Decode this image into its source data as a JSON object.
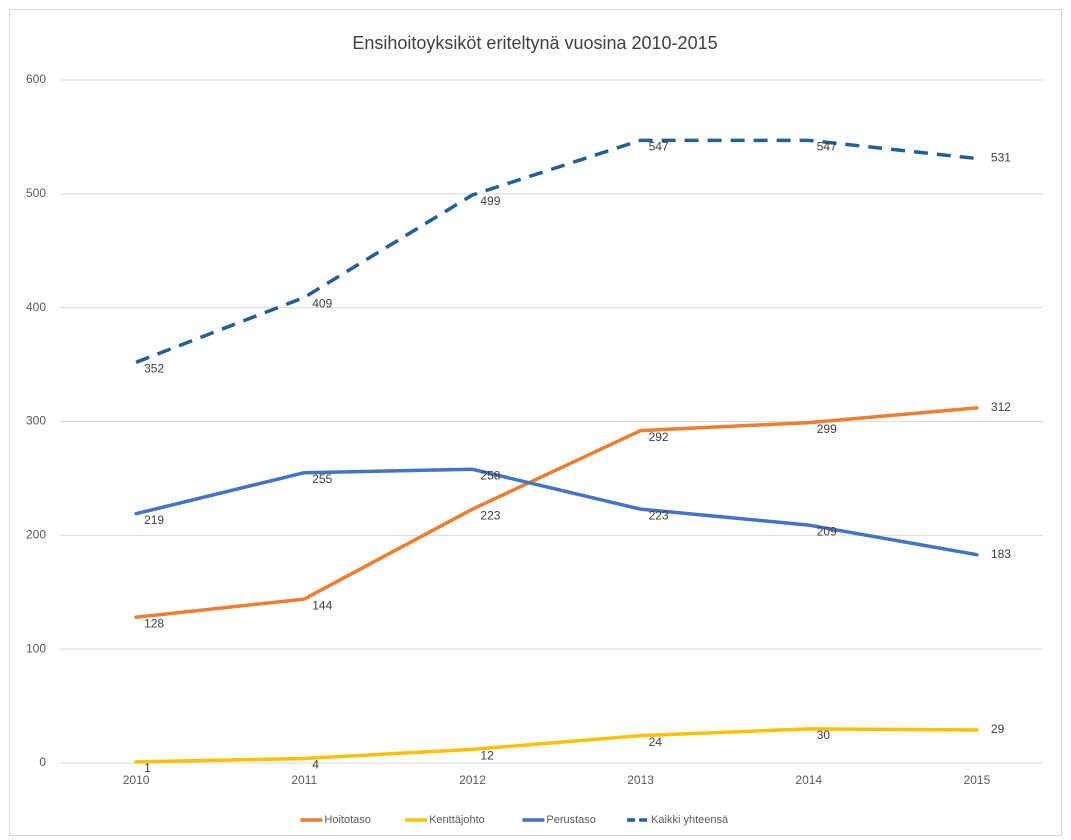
{
  "chart_data": {
    "type": "line",
    "title": "Ensihoitoyksiköt eriteltynä vuosina 2010-2015",
    "categories": [
      "2010",
      "2011",
      "2012",
      "2013",
      "2014",
      "2015"
    ],
    "series": [
      {
        "name": "Hoitotaso",
        "color": "#ed7d31",
        "values": [
          128,
          144,
          223,
          292,
          299,
          312
        ]
      },
      {
        "name": "Kenttäjohto",
        "color": "#ffc000",
        "values": [
          1,
          4,
          12,
          24,
          30,
          29
        ]
      },
      {
        "name": "Perustaso",
        "color": "#4472c4",
        "values": [
          219,
          255,
          258,
          223,
          209,
          183
        ]
      },
      {
        "name": "Kaikki yhteensä",
        "color": "#255e91",
        "dash": true,
        "values": [
          352,
          409,
          499,
          547,
          547,
          531
        ]
      }
    ],
    "ylim": [
      0,
      600
    ],
    "yticks": [
      0,
      100,
      200,
      300,
      400,
      500,
      600
    ],
    "grid": true,
    "legend": "bottom"
  }
}
